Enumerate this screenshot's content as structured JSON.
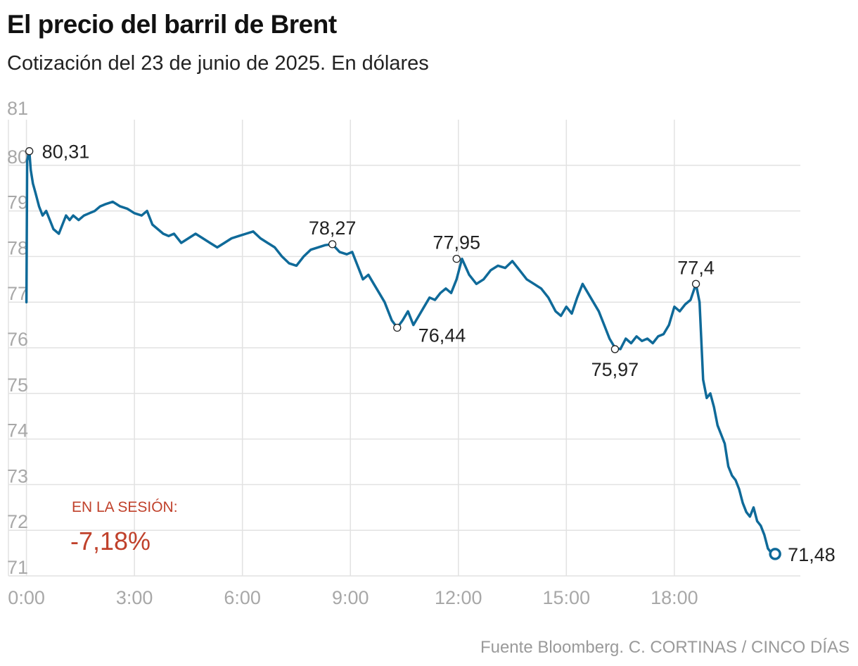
{
  "header": {
    "title": "El precio del barril de Brent",
    "subtitle": "Cotización del 23 de junio de 2025. En dólares"
  },
  "source": "Fuente Bloomberg. C. CORTINAS / CINCO DÍAS",
  "session": {
    "label": "EN LA SESIÓN:",
    "value": "-7,18%"
  },
  "colors": {
    "line": "#0f6a99",
    "accent": "#c0412b",
    "grid": "#e2e2e2",
    "axis_text": "#a8a8a8"
  },
  "chart_data": {
    "type": "line",
    "title": "El precio del barril de Brent",
    "subtitle": "Cotización del 23 de junio de 2025. En dólares",
    "xlabel": "",
    "ylabel": "",
    "x_unit": "hours",
    "xlim": [
      -0.5,
      21.5
    ],
    "ylim": [
      71,
      81
    ],
    "yticks": [
      71,
      72,
      73,
      74,
      75,
      76,
      77,
      78,
      79,
      80,
      81
    ],
    "ytick_labels": [
      "71",
      "72",
      "73",
      "74",
      "75",
      "76",
      "77",
      "78",
      "79",
      "80",
      "81"
    ],
    "xticks": [
      0,
      3,
      6,
      9,
      12,
      15,
      18
    ],
    "xtick_labels": [
      "0:00",
      "3:00",
      "6:00",
      "9:00",
      "12:00",
      "15:00",
      "18:00"
    ],
    "grid": true,
    "series": [
      {
        "name": "Brent",
        "x": [
          0,
          0.02,
          0.08,
          0.12,
          0.18,
          0.25,
          0.35,
          0.45,
          0.55,
          0.65,
          0.75,
          0.9,
          1.0,
          1.1,
          1.2,
          1.3,
          1.45,
          1.6,
          1.75,
          1.9,
          2.05,
          2.2,
          2.4,
          2.6,
          2.8,
          3.0,
          3.2,
          3.35,
          3.5,
          3.65,
          3.8,
          3.95,
          4.1,
          4.3,
          4.5,
          4.7,
          4.9,
          5.1,
          5.3,
          5.5,
          5.7,
          5.9,
          6.1,
          6.3,
          6.5,
          6.7,
          6.9,
          7.1,
          7.3,
          7.5,
          7.7,
          7.9,
          8.1,
          8.3,
          8.5,
          8.7,
          8.9,
          9.05,
          9.15,
          9.25,
          9.35,
          9.5,
          9.65,
          9.8,
          9.95,
          10.05,
          10.15,
          10.3,
          10.45,
          10.6,
          10.75,
          10.9,
          11.05,
          11.2,
          11.35,
          11.5,
          11.65,
          11.8,
          11.95,
          12.1,
          12.3,
          12.5,
          12.7,
          12.9,
          13.1,
          13.3,
          13.5,
          13.7,
          13.9,
          14.1,
          14.3,
          14.5,
          14.7,
          14.85,
          15.0,
          15.15,
          15.3,
          15.45,
          15.6,
          15.75,
          15.9,
          16.05,
          16.2,
          16.35,
          16.5,
          16.65,
          16.8,
          16.95,
          17.1,
          17.25,
          17.4,
          17.55,
          17.7,
          17.85,
          18.0,
          18.15,
          18.3,
          18.45,
          18.6,
          18.7,
          18.8,
          18.9,
          19.0,
          19.1,
          19.2,
          19.3,
          19.4,
          19.5,
          19.6,
          19.7,
          19.8,
          19.9,
          20.0,
          20.1,
          20.2,
          20.3,
          20.4,
          20.5,
          20.6,
          20.7,
          20.8
        ],
        "values": [
          77.0,
          80.1,
          80.31,
          79.9,
          79.6,
          79.4,
          79.1,
          78.9,
          79.0,
          78.8,
          78.6,
          78.5,
          78.7,
          78.9,
          78.8,
          78.9,
          78.8,
          78.9,
          78.95,
          79.0,
          79.1,
          79.15,
          79.2,
          79.1,
          79.05,
          78.95,
          78.9,
          79.0,
          78.7,
          78.6,
          78.5,
          78.45,
          78.5,
          78.3,
          78.4,
          78.5,
          78.4,
          78.3,
          78.2,
          78.3,
          78.4,
          78.45,
          78.5,
          78.55,
          78.4,
          78.3,
          78.2,
          78.0,
          77.85,
          77.8,
          78.0,
          78.15,
          78.2,
          78.25,
          78.27,
          78.1,
          78.05,
          78.1,
          77.9,
          77.7,
          77.5,
          77.6,
          77.4,
          77.2,
          77.0,
          76.8,
          76.6,
          76.44,
          76.6,
          76.8,
          76.5,
          76.7,
          76.9,
          77.1,
          77.05,
          77.2,
          77.3,
          77.2,
          77.5,
          77.95,
          77.6,
          77.4,
          77.5,
          77.7,
          77.8,
          77.75,
          77.9,
          77.7,
          77.5,
          77.4,
          77.3,
          77.1,
          76.8,
          76.7,
          76.9,
          76.75,
          77.1,
          77.4,
          77.2,
          77.0,
          76.8,
          76.5,
          76.2,
          76.0,
          75.97,
          76.2,
          76.1,
          76.25,
          76.15,
          76.2,
          76.1,
          76.25,
          76.3,
          76.5,
          76.9,
          76.8,
          76.95,
          77.05,
          77.4,
          77.0,
          75.3,
          74.9,
          75.0,
          74.7,
          74.3,
          74.1,
          73.9,
          73.4,
          73.2,
          73.1,
          72.9,
          72.6,
          72.4,
          72.3,
          72.5,
          72.2,
          72.1,
          71.9,
          71.6,
          71.5,
          71.48
        ]
      }
    ],
    "annotations": [
      {
        "x": 0.08,
        "y": 80.31,
        "label": "80,31",
        "position": "right"
      },
      {
        "x": 8.5,
        "y": 78.27,
        "label": "78,27",
        "position": "above"
      },
      {
        "x": 10.3,
        "y": 76.44,
        "label": "76,44",
        "position": "below-right"
      },
      {
        "x": 11.95,
        "y": 77.95,
        "label": "77,95",
        "position": "above"
      },
      {
        "x": 16.35,
        "y": 75.97,
        "label": "75,97",
        "position": "below"
      },
      {
        "x": 18.6,
        "y": 77.4,
        "label": "77,4",
        "position": "above"
      },
      {
        "x": 20.8,
        "y": 71.48,
        "label": "71,48",
        "position": "right",
        "last": true
      }
    ]
  }
}
